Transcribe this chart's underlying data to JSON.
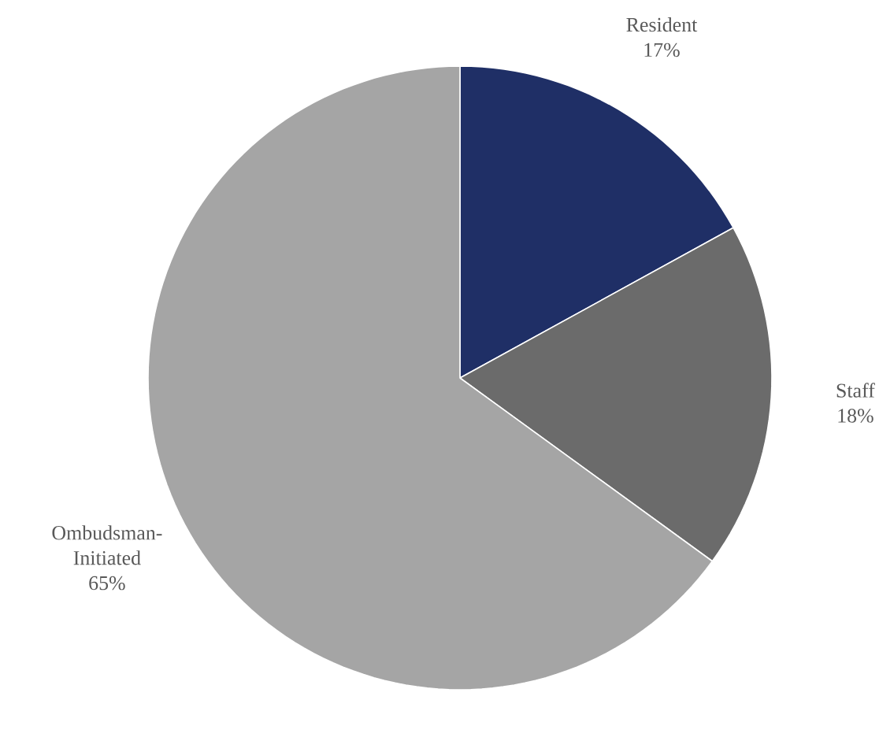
{
  "chart_data": {
    "type": "pie",
    "categories": [
      "Resident",
      "Staff",
      "Ombudsman-Initiated"
    ],
    "values": [
      17,
      18,
      65
    ],
    "colors": [
      "#1f2f66",
      "#6b6b6b",
      "#a5a5a5"
    ],
    "value_labels": [
      "17%",
      "18%",
      "65%"
    ]
  }
}
